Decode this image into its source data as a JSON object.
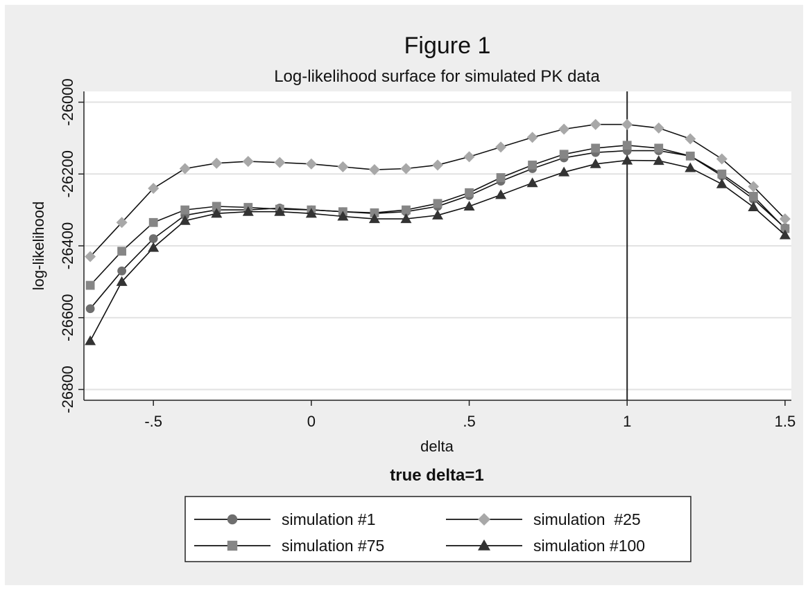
{
  "chart_data": {
    "type": "line",
    "title": "Figure 1",
    "subtitle": "Log-likelihood surface for simulated PK data",
    "xlabel": "delta",
    "ylabel": "log-likelihood",
    "note": "true delta=1",
    "xlim": [
      -0.72,
      1.52
    ],
    "ylim": [
      -26830,
      -25970
    ],
    "x_ticks": [
      -0.5,
      0,
      0.5,
      1,
      1.5
    ],
    "x_tick_labels": [
      "-.5",
      "0",
      ".5",
      "1",
      "1.5"
    ],
    "y_ticks": [
      -26800,
      -26600,
      -26400,
      -26200,
      -26000
    ],
    "y_tick_labels": [
      "-26800",
      "-26600",
      "-26400",
      "-26200",
      "-26000"
    ],
    "grid": true,
    "reference_line_x": 1,
    "legend_position": "bottom",
    "x": [
      -0.7,
      -0.6,
      -0.5,
      -0.4,
      -0.3,
      -0.2,
      -0.1,
      0.0,
      0.1,
      0.2,
      0.3,
      0.4,
      0.5,
      0.6,
      0.7,
      0.8,
      0.9,
      1.0,
      1.1,
      1.2,
      1.3,
      1.4,
      1.5
    ],
    "series": [
      {
        "name": "simulation #1",
        "marker": "circle",
        "color": "#6e6e6e",
        "values": [
          -26575,
          -26470,
          -26380,
          -26315,
          -26300,
          -26300,
          -26295,
          -26300,
          -26305,
          -26310,
          -26305,
          -26290,
          -26260,
          -26220,
          -26185,
          -26155,
          -26140,
          -26135,
          -26135,
          -26150,
          -26205,
          -26270,
          -26350
        ]
      },
      {
        "name": "simulation  #25",
        "marker": "diamond",
        "color": "#a8a8a8",
        "values": [
          -26430,
          -26335,
          -26240,
          -26185,
          -26170,
          -26165,
          -26168,
          -26172,
          -26180,
          -26188,
          -26185,
          -26175,
          -26152,
          -26125,
          -26098,
          -26075,
          -26062,
          -26062,
          -26072,
          -26102,
          -26158,
          -26235,
          -26325
        ]
      },
      {
        "name": "simulation #75",
        "marker": "square",
        "color": "#868686",
        "values": [
          -26510,
          -26415,
          -26335,
          -26300,
          -26290,
          -26293,
          -26298,
          -26300,
          -26305,
          -26308,
          -26300,
          -26282,
          -26252,
          -26210,
          -26175,
          -26145,
          -26128,
          -26120,
          -26128,
          -26150,
          -26200,
          -26262,
          -26352
        ]
      },
      {
        "name": "simulation #100",
        "marker": "triangle",
        "color": "#333333",
        "values": [
          -26665,
          -26500,
          -26405,
          -26330,
          -26310,
          -26305,
          -26305,
          -26310,
          -26318,
          -26325,
          -26325,
          -26315,
          -26290,
          -26258,
          -26225,
          -26195,
          -26172,
          -26162,
          -26163,
          -26183,
          -26228,
          -26292,
          -26370
        ]
      }
    ]
  }
}
